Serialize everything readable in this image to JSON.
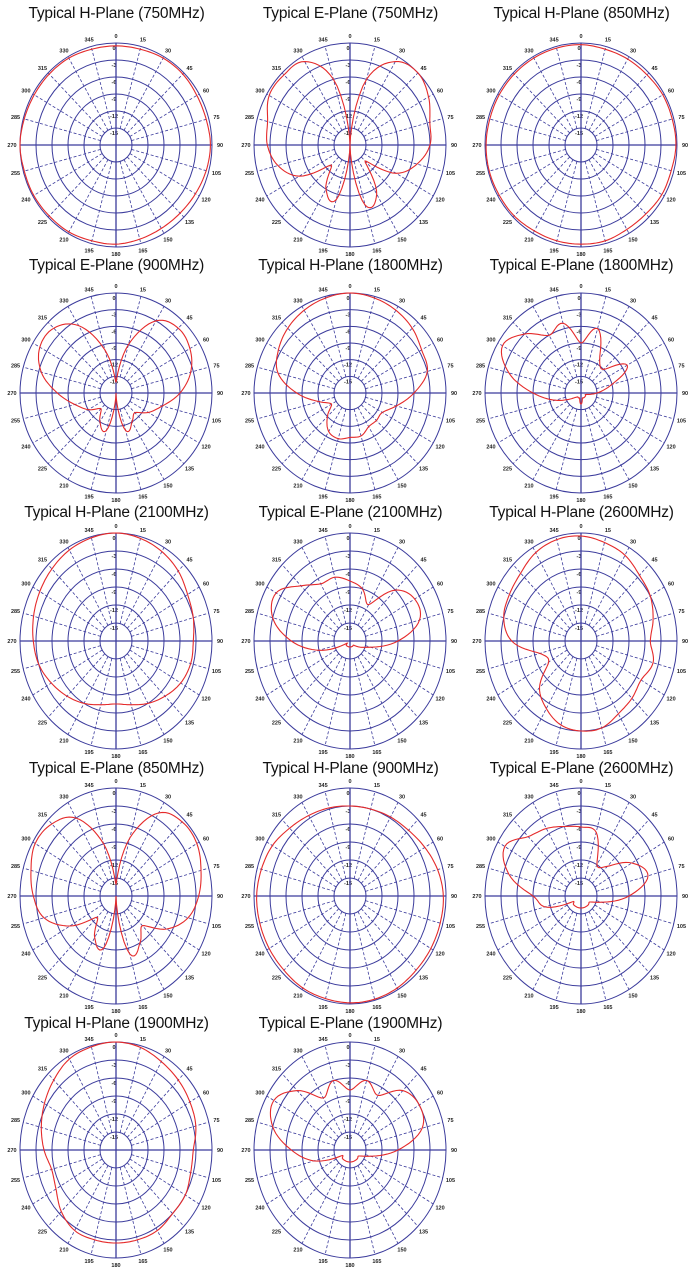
{
  "chart_data": {
    "type": "polar",
    "common": {
      "angle_unit": "degrees, 0 at top, clockwise",
      "angular_ticks": [
        "0",
        "15",
        "30",
        "45",
        "60",
        "75",
        "90",
        "105",
        "120",
        "135",
        "150",
        "165",
        "180",
        "195",
        "210",
        "225",
        "240",
        "255",
        "270",
        "285",
        "300",
        "315",
        "330",
        "345"
      ],
      "radial_ticks": [
        "0",
        "-3",
        "-6",
        "-9",
        "-12",
        "-15"
      ],
      "rlim_db": [
        -18,
        0
      ],
      "grid": true,
      "grid_color": "#3b3b9c",
      "trace_color": "#e52a2a",
      "sample_angles": [
        0,
        15,
        30,
        45,
        60,
        75,
        90,
        105,
        120,
        135,
        150,
        165,
        180,
        195,
        210,
        225,
        240,
        255,
        270,
        285,
        300,
        315,
        330,
        345
      ]
    },
    "charts": [
      {
        "title": "Typical H-Plane (750MHz)",
        "values": [
          -0.5,
          -0.5,
          -0.3,
          -0.3,
          -0.5,
          -0.5,
          -0.3,
          -0.5,
          -0.8,
          -1,
          -1,
          -0.8,
          -0.5,
          -0.5,
          -0.3,
          -0.3,
          -0.2,
          -0.2,
          0,
          -0.2,
          -0.3,
          -0.3,
          -0.3,
          -0.5
        ]
      },
      {
        "title": "Typical E-Plane (750MHz)",
        "values": [
          -18,
          -6,
          -1,
          0,
          -1,
          -2.5,
          -3,
          -5,
          -8,
          -14,
          -8,
          -7,
          -18,
          -8,
          -9,
          -13,
          -7,
          -4,
          -2.5,
          -2,
          -0.5,
          -0.5,
          -1,
          -6
        ]
      },
      {
        "title": "Typical H-Plane (850MHz)",
        "values": [
          -0.3,
          -0.5,
          -0.5,
          -0.5,
          -0.3,
          -0.3,
          -0.2,
          -0.5,
          -0.5,
          -0.8,
          -0.8,
          -0.5,
          -0.5,
          -0.5,
          -0.5,
          -0.3,
          -0.3,
          -0.2,
          -0.2,
          -0.3,
          -0.3,
          -0.3,
          -0.3,
          -0.3
        ]
      },
      {
        "title": "Typical E-Plane (900MHz)",
        "values": [
          -16,
          -9,
          -3,
          -1.5,
          -2,
          -3.5,
          -6,
          -9,
          -11,
          -13,
          -12,
          -11,
          -18,
          -11,
          -12,
          -14,
          -12,
          -10,
          -7,
          -3.5,
          -1.5,
          -1.5,
          -4,
          -10
        ]
      },
      {
        "title": "Typical H-Plane (1800MHz)",
        "values": [
          0,
          -0.3,
          -0.8,
          -1.5,
          -2.5,
          -3,
          -6,
          -9,
          -11,
          -11,
          -11,
          -10,
          -10,
          -9.5,
          -10,
          -12,
          -14,
          -12,
          -8,
          -4,
          -2.5,
          -1.5,
          -0.8,
          -0.3
        ]
      },
      {
        "title": "Typical E-Plane (1800MHz)",
        "values": [
          -9,
          -6,
          -11,
          -12,
          -8,
          -12,
          -15,
          -17,
          -17,
          -17,
          -17,
          -17,
          -16,
          -17,
          -17,
          -17,
          -16,
          -13,
          -9,
          -4,
          -1,
          -3,
          -6,
          -5
        ]
      },
      {
        "title": "Typical H-Plane (2100MHz)",
        "values": [
          0,
          -0.3,
          -0.8,
          -1.5,
          -2.5,
          -3,
          -3.5,
          -3.5,
          -4,
          -5,
          -6,
          -7,
          -7.5,
          -7,
          -6,
          -5,
          -4,
          -3,
          -2.5,
          -2,
          -1.5,
          -1,
          -0.5,
          -0.2
        ]
      },
      {
        "title": "Typical E-Plane (2100MHz)",
        "values": [
          -8,
          -9,
          -11,
          -6,
          -4,
          -4.5,
          -9,
          -14,
          -16,
          -17,
          -17,
          -17,
          -17,
          -17,
          -17,
          -17,
          -17,
          -12,
          -7,
          -3,
          -2,
          -5,
          -7,
          -7
        ]
      },
      {
        "title": "Typical H-Plane (2600MHz)",
        "values": [
          -0.5,
          -1,
          -1.5,
          -2.5,
          -3,
          -4,
          -5,
          -4,
          -5,
          -4.5,
          -4,
          -3,
          -3,
          -3.5,
          -5,
          -7,
          -11,
          -10,
          -5,
          -3,
          -2.5,
          -2,
          -1,
          -0.5
        ]
      },
      {
        "title": "Typical E-Plane (850MHz)",
        "values": [
          -16,
          -8,
          -2,
          -0.5,
          -0.5,
          -1.5,
          -2.5,
          -4,
          -7,
          -11,
          -9,
          -8,
          -18,
          -9,
          -10,
          -13,
          -8,
          -4,
          -2.5,
          -1.5,
          -0.5,
          -1,
          -3,
          -9
        ]
      },
      {
        "title": "Typical H-Plane (900MHz)",
        "values": [
          -3,
          -3,
          -2.8,
          -2.5,
          -1.8,
          -1,
          -0.5,
          -0.5,
          -0.5,
          -0.5,
          -0.3,
          -0.2,
          -0.2,
          -0.3,
          -0.3,
          -0.5,
          -0.5,
          -0.5,
          -0.5,
          -0.8,
          -1.2,
          -2,
          -2.5,
          -2.8
        ]
      },
      {
        "title": "Typical E-Plane (2600MHz)",
        "values": [
          -6.5,
          -7,
          -12,
          -11,
          -7,
          -5,
          -9,
          -14,
          -16,
          -16,
          -16,
          -16,
          -16,
          -16,
          -16,
          -16,
          -16,
          -11,
          -9,
          -4,
          -1.5,
          -4,
          -5,
          -6
        ]
      },
      {
        "title": "Typical H-Plane (1900MHz)",
        "values": [
          0,
          -0.3,
          -1,
          -1.5,
          -2,
          -2.5,
          -3.5,
          -3.5,
          -3,
          -3,
          -2.5,
          -2.5,
          -2.5,
          -2.5,
          -2.5,
          -3.5,
          -5,
          -5.5,
          -4.5,
          -3.5,
          -2.5,
          -1.5,
          -0.5,
          -0.2
        ]
      },
      {
        "title": "Typical E-Plane (1900MHz)",
        "values": [
          -8,
          -6,
          -7.5,
          -4,
          -3,
          -4,
          -9,
          -14,
          -16,
          -16,
          -16,
          -16,
          -16,
          -16,
          -16,
          -16,
          -16,
          -11,
          -7,
          -3,
          -1.5,
          -4,
          -8,
          -6
        ]
      }
    ]
  }
}
